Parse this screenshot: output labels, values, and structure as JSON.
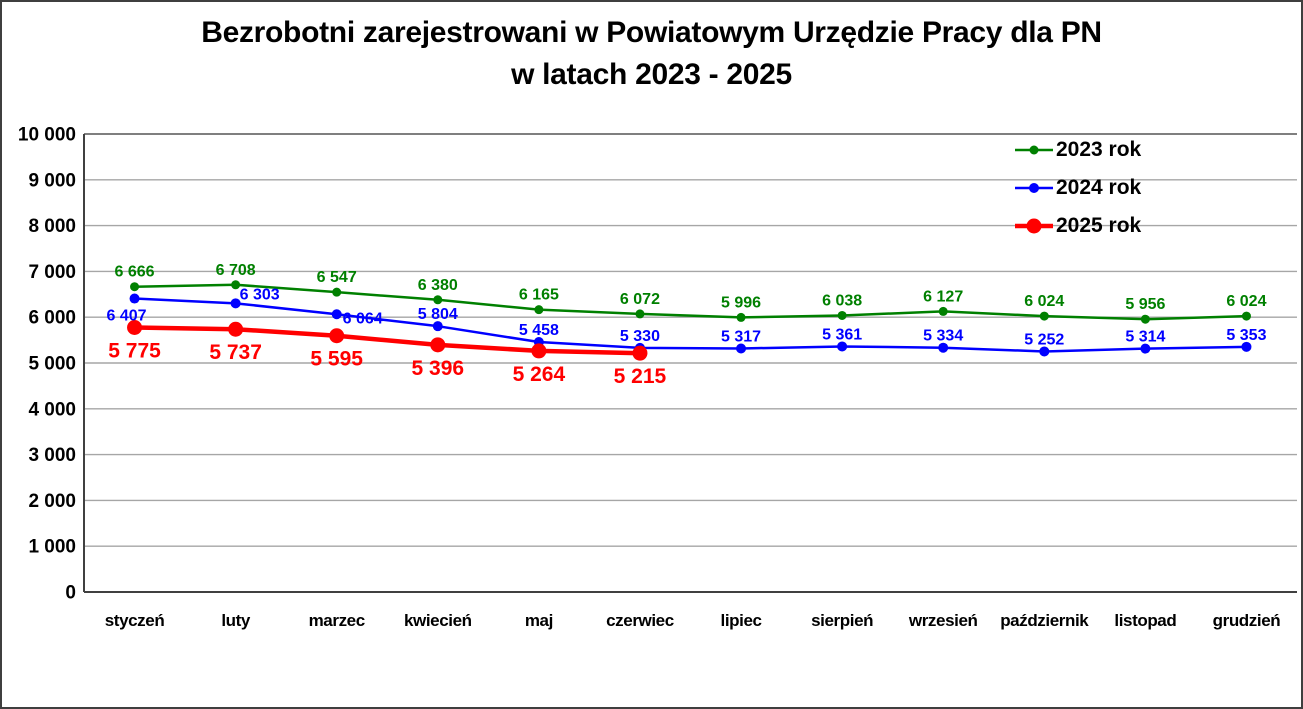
{
  "title": {
    "line1": "Bezrobotni zarejestrowani w Powiatowym Urzędzie Pracy dla PN",
    "line2": "w latach 2023 - 2025"
  },
  "chart_data": {
    "type": "line",
    "categories": [
      "styczeń",
      "luty",
      "marzec",
      "kwiecień",
      "maj",
      "czerwiec",
      "lipiec",
      "sierpień",
      "wrzesień",
      "październik",
      "listopad",
      "grudzień"
    ],
    "series": [
      {
        "name": "2023 rok",
        "color": "#008000",
        "values": [
          6666,
          6708,
          6547,
          6380,
          6165,
          6072,
          5996,
          6038,
          6127,
          6024,
          5956,
          6024
        ],
        "line_width": 2.5,
        "marker_radius": 4.5,
        "label_font_size": 16,
        "label_dx": 0,
        "label_dy": -10,
        "label_overrides": {}
      },
      {
        "name": "2024 rok",
        "color": "#0000ff",
        "values": [
          6407,
          6303,
          6064,
          5804,
          5458,
          5330,
          5317,
          5361,
          5334,
          5252,
          5314,
          5353
        ],
        "line_width": 2.5,
        "marker_radius": 5,
        "label_font_size": 16,
        "label_dx": 0,
        "label_dy": -7,
        "label_overrides": {
          "0": [
            -8,
            22
          ],
          "1": [
            24,
            -4
          ],
          "2": [
            26,
            9
          ]
        }
      },
      {
        "name": "2025 rok",
        "color": "#ff0000",
        "values": [
          5775,
          5737,
          5595,
          5396,
          5264,
          5215
        ],
        "line_width": 4.5,
        "marker_radius": 7.5,
        "label_font_size": 21,
        "label_dx": 0,
        "label_dy": 30,
        "label_overrides": {}
      }
    ],
    "ylabel": "",
    "xlabel": "",
    "ylim": [
      0,
      10000
    ],
    "ytick_step": 1000,
    "ytick_labels": [
      "0",
      "1 000",
      "2 000",
      "3 000",
      "4 000",
      "5 000",
      "6 000",
      "7 000",
      "8 000",
      "9 000",
      "10 000"
    ],
    "grid": true,
    "legend_position": "top-right",
    "value_label_format": "space-thousands"
  },
  "colors": {
    "grid": "#a6a6a6",
    "grid_top": "#7f7f7f",
    "axis": "#404040",
    "text": "#000000",
    "background": "#ffffff"
  }
}
